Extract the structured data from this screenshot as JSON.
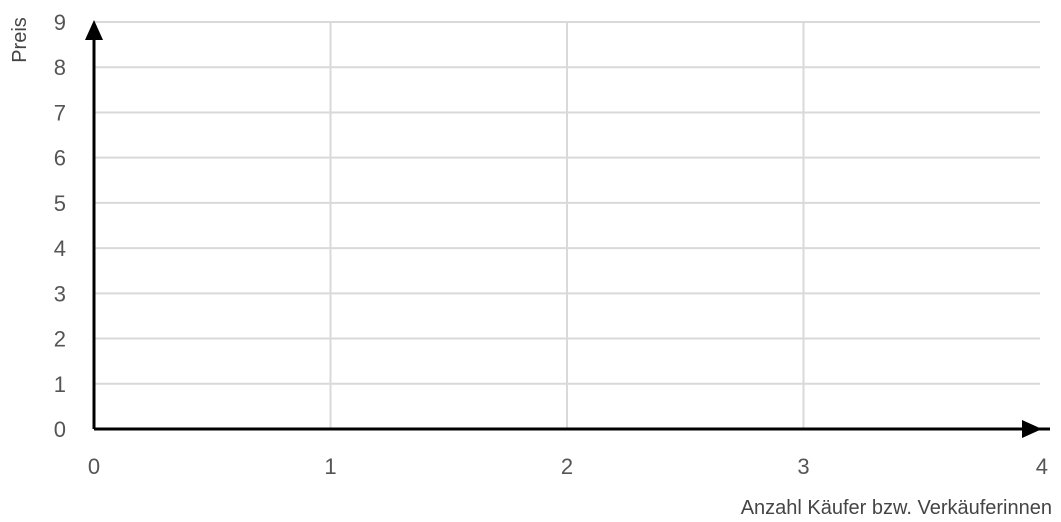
{
  "chart_data": {
    "type": "line",
    "title": "",
    "xlabel": "Anzahl Käufer bzw. Verkäuferinnen",
    "ylabel": "Preis",
    "xlim": [
      0,
      4
    ],
    "ylim": [
      0,
      9
    ],
    "x_ticks": [
      0,
      1,
      2,
      3,
      4
    ],
    "y_ticks": [
      0,
      1,
      2,
      3,
      4,
      5,
      6,
      7,
      8,
      9
    ],
    "x_tick_labels": [
      "0",
      "1",
      "2",
      "3",
      "4"
    ],
    "y_tick_labels": [
      "0",
      "1",
      "2",
      "3",
      "4",
      "5",
      "6",
      "7",
      "8",
      "9"
    ],
    "grid": true,
    "series": [],
    "colors": {
      "grid": "#d9d9d9",
      "axis": "#000000",
      "tick_text": "#555555",
      "axis_title": "#444444"
    }
  }
}
